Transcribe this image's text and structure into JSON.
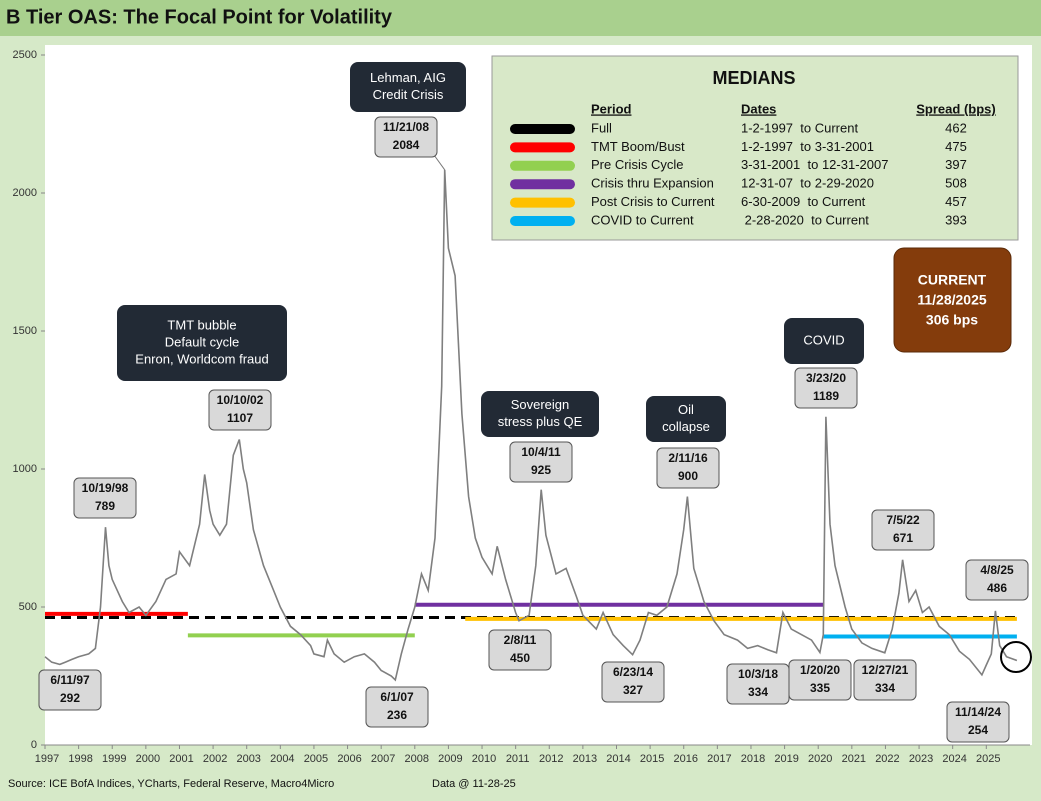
{
  "chart_data": {
    "type": "line",
    "title": "B Tier OAS: The Focal Point for Volatility",
    "color": "#7f7f7f",
    "xlim": [
      1997,
      2026.3
    ],
    "xticks": [
      1997,
      1998,
      1999,
      2000,
      2001,
      2002,
      2003,
      2004,
      2005,
      2006,
      2007,
      2008,
      2009,
      2010,
      2011,
      2012,
      2013,
      2014,
      2015,
      2016,
      2017,
      2018,
      2019,
      2020,
      2021,
      2022,
      2023,
      2024,
      2025
    ],
    "ylim": [
      0,
      2500
    ],
    "yticks": [
      0,
      500,
      1000,
      1500,
      2000,
      2500
    ],
    "x": [
      1997.0,
      1997.2,
      1997.44,
      1997.6,
      1997.8,
      1998.0,
      1998.3,
      1998.5,
      1998.65,
      1998.8,
      1998.9,
      1999.0,
      1999.3,
      1999.5,
      1999.8,
      2000.0,
      2000.3,
      2000.6,
      2000.9,
      2001.0,
      2001.3,
      2001.6,
      2001.75,
      2001.9,
      2002.0,
      2002.2,
      2002.4,
      2002.6,
      2002.78,
      2002.9,
      2003.0,
      2003.2,
      2003.5,
      2003.8,
      2004.0,
      2004.3,
      2004.6,
      2004.9,
      2005.0,
      2005.3,
      2005.4,
      2005.6,
      2005.9,
      2006.2,
      2006.5,
      2006.8,
      2007.0,
      2007.3,
      2007.42,
      2007.6,
      2007.8,
      2008.0,
      2008.2,
      2008.4,
      2008.6,
      2008.8,
      2008.89,
      2009.0,
      2009.2,
      2009.4,
      2009.6,
      2009.8,
      2010.0,
      2010.3,
      2010.45,
      2010.7,
      2011.0,
      2011.1,
      2011.4,
      2011.6,
      2011.76,
      2011.9,
      2012.2,
      2012.5,
      2012.8,
      2013.0,
      2013.4,
      2013.6,
      2013.9,
      2014.2,
      2014.48,
      2014.7,
      2014.95,
      2015.2,
      2015.5,
      2015.8,
      2016.0,
      2016.11,
      2016.3,
      2016.6,
      2016.9,
      2017.2,
      2017.6,
      2017.9,
      2018.2,
      2018.5,
      2018.76,
      2018.95,
      2019.2,
      2019.5,
      2019.8,
      2020.05,
      2020.15,
      2020.23,
      2020.35,
      2020.5,
      2020.8,
      2021.0,
      2021.3,
      2021.6,
      2021.98,
      2022.2,
      2022.4,
      2022.51,
      2022.7,
      2022.9,
      2023.1,
      2023.3,
      2023.6,
      2023.9,
      2024.2,
      2024.5,
      2024.87,
      2025.0,
      2025.15,
      2025.27,
      2025.4,
      2025.6,
      2025.91
    ],
    "values": [
      320,
      300,
      292,
      300,
      310,
      320,
      330,
      350,
      500,
      789,
      650,
      600,
      520,
      480,
      500,
      470,
      520,
      600,
      620,
      700,
      650,
      800,
      980,
      850,
      800,
      760,
      800,
      1050,
      1107,
      1000,
      950,
      780,
      650,
      560,
      500,
      430,
      400,
      360,
      330,
      320,
      380,
      330,
      300,
      320,
      330,
      300,
      270,
      250,
      236,
      330,
      420,
      500,
      620,
      560,
      750,
      1300,
      2084,
      1800,
      1700,
      1200,
      900,
      750,
      680,
      620,
      720,
      600,
      480,
      450,
      470,
      650,
      925,
      760,
      620,
      640,
      540,
      470,
      420,
      480,
      400,
      360,
      327,
      380,
      480,
      470,
      500,
      620,
      780,
      900,
      640,
      520,
      450,
      400,
      380,
      350,
      360,
      345,
      334,
      480,
      420,
      400,
      380,
      335,
      400,
      1189,
      800,
      650,
      500,
      420,
      370,
      350,
      334,
      420,
      550,
      671,
      520,
      560,
      480,
      500,
      430,
      400,
      340,
      310,
      254,
      290,
      330,
      486,
      360,
      320,
      306
    ],
    "annotations": [
      {
        "date": "6/11/97",
        "value": 292
      },
      {
        "date": "10/19/98",
        "value": 789
      },
      {
        "date": "10/10/02",
        "value": 1107
      },
      {
        "date": "6/1/07",
        "value": 236
      },
      {
        "date": "11/21/08",
        "value": 2084
      },
      {
        "date": "10/4/11",
        "value": 925
      },
      {
        "date": "2/8/11",
        "value": 450
      },
      {
        "date": "6/23/14",
        "value": 327
      },
      {
        "date": "2/11/16",
        "value": 900
      },
      {
        "date": "10/3/18",
        "value": 334
      },
      {
        "date": "1/20/20",
        "value": 335
      },
      {
        "date": "3/23/20",
        "value": 1189
      },
      {
        "date": "12/27/21",
        "value": 334
      },
      {
        "date": "7/5/22",
        "value": 671
      },
      {
        "date": "4/8/25",
        "value": 486
      },
      {
        "date": "11/14/24",
        "value": 254
      }
    ],
    "callouts": [
      {
        "lines": [
          "Lehman, AIG",
          "Credit Crisis"
        ]
      },
      {
        "lines": [
          "TMT bubble",
          "Default cycle",
          "Enron, Worldcom fraud"
        ]
      },
      {
        "lines": [
          "Sovereign",
          "stress plus QE"
        ]
      },
      {
        "lines": [
          "Oil",
          "collapse"
        ]
      },
      {
        "lines": [
          "COVID"
        ]
      }
    ],
    "current": {
      "lines": [
        "CURRENT",
        "11/28/2025",
        "306 bps"
      ]
    },
    "medians": {
      "title": "MEDIANS",
      "headers": {
        "period": "Period",
        "dates": "Dates",
        "spread": "Spread (bps)"
      },
      "rows": [
        {
          "period": "Full",
          "dates": "1-2-1997  to Current",
          "spread": 462,
          "color": "#000000",
          "dashed": true,
          "xrange": [
            1997.0,
            2025.91
          ]
        },
        {
          "period": "TMT Boom/Bust",
          "dates": "1-2-1997  to 3-31-2001",
          "spread": 475,
          "color": "#ff0000",
          "dashed": false,
          "xrange": [
            1997.0,
            2001.25
          ]
        },
        {
          "period": "Pre Crisis Cycle",
          "dates": "3-31-2001  to 12-31-2007",
          "spread": 397,
          "color": "#92d050",
          "dashed": false,
          "xrange": [
            2001.25,
            2008.0
          ]
        },
        {
          "period": "Crisis thru Expansion",
          "dates": "12-31-07  to 2-29-2020",
          "spread": 508,
          "color": "#7030a0",
          "dashed": false,
          "xrange": [
            2008.0,
            2020.16
          ]
        },
        {
          "period": "Post Crisis to Current",
          "dates": "6-30-2009  to Current",
          "spread": 457,
          "color": "#ffc000",
          "dashed": false,
          "xrange": [
            2009.5,
            2025.91
          ]
        },
        {
          "period": "COVID to Current",
          "dates": " 2-28-2020  to Current",
          "spread": 393,
          "color": "#00b0f0",
          "dashed": false,
          "xrange": [
            2020.16,
            2025.91
          ]
        }
      ]
    },
    "source": "Source: ICE BofA Indices, YCharts, Federal Reserve, Macro4Micro",
    "data_note": "Data @ 11-28-25"
  }
}
